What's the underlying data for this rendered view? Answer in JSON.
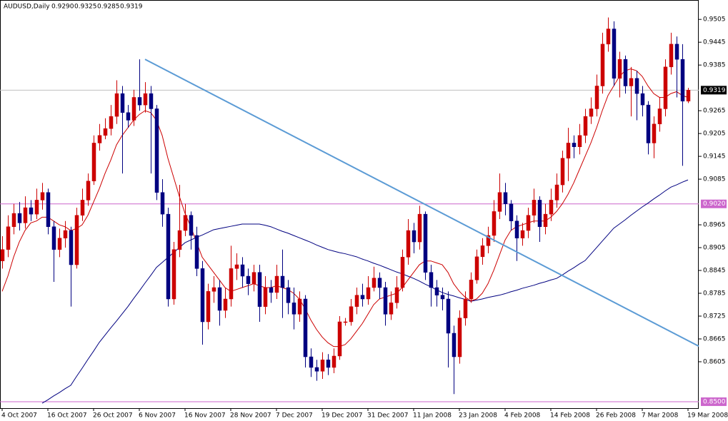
{
  "chart_data": {
    "type": "candlestick",
    "title": "AUDUSD,Daily",
    "ohlc_labels": [
      "0.9290",
      "0.9325",
      "0.9285",
      "0.9319"
    ],
    "categories": [
      "4 Oct 2007",
      null,
      null,
      null,
      null,
      null,
      null,
      null,
      "16 Oct 2007",
      null,
      null,
      null,
      null,
      null,
      null,
      null,
      "26 Oct 2007",
      null,
      null,
      null,
      null,
      null,
      null,
      null,
      "6 Nov 2007",
      null,
      null,
      null,
      null,
      null,
      null,
      null,
      "16 Nov 2007",
      null,
      null,
      null,
      null,
      null,
      null,
      null,
      "28 Nov 2007",
      null,
      null,
      null,
      null,
      null,
      null,
      null,
      "7 Dec 2007",
      null,
      null,
      null,
      null,
      null,
      null,
      null,
      "19 Dec 2007",
      null,
      null,
      null,
      null,
      null,
      null,
      null,
      "31 Dec 2007",
      null,
      null,
      null,
      null,
      null,
      null,
      null,
      "11 Jan 2008",
      null,
      null,
      null,
      null,
      null,
      null,
      null,
      "23 Jan 2008",
      null,
      null,
      null,
      null,
      null,
      null,
      null,
      "4 Feb 2008",
      null,
      null,
      null,
      null,
      null,
      null,
      null,
      "14 Feb 2008",
      null,
      null,
      null,
      null,
      null,
      null,
      null,
      "26 Feb 2008",
      null,
      null,
      null,
      null,
      null,
      null,
      null,
      "7 Mar 2008",
      null,
      null,
      null,
      null,
      null,
      null,
      null,
      "19 Mar 2008"
    ],
    "open": [
      0.887,
      0.89,
      0.896,
      0.8995,
      0.897,
      0.901,
      0.8993,
      0.903,
      0.905,
      0.896,
      0.89,
      0.893,
      0.895,
      0.886,
      0.899,
      0.903,
      0.908,
      0.918,
      0.92,
      0.9218,
      0.925,
      0.931,
      0.926,
      0.924,
      0.93,
      0.928,
      0.931,
      0.927,
      0.905,
      0.8993,
      0.877,
      0.89,
      0.895,
      0.899,
      0.8937,
      0.885,
      0.871,
      0.879,
      0.88,
      0.874,
      0.877,
      0.885,
      0.886,
      0.883,
      0.881,
      0.884,
      0.875,
      0.88,
      0.8787,
      0.883,
      0.88,
      0.876,
      0.873,
      0.877,
      0.8618,
      0.859,
      0.858,
      0.861,
      0.859,
      0.862,
      0.871,
      0.871,
      0.875,
      0.878,
      0.877,
      0.88,
      0.8825,
      0.88,
      0.873,
      0.876,
      0.88,
      0.888,
      0.895,
      0.892,
      0.8993,
      0.884,
      0.88,
      0.878,
      0.877,
      0.868,
      0.8618,
      0.872,
      0.877,
      0.882,
      0.8881,
      0.891,
      0.8937,
      0.9,
      0.905,
      0.902,
      0.8975,
      0.893,
      0.895,
      0.899,
      0.903,
      0.896,
      0.8993,
      0.903,
      0.907,
      0.914,
      0.918,
      0.917,
      0.92,
      0.925,
      0.927,
      0.933,
      0.944,
      0.948,
      0.935,
      0.94,
      0.933,
      0.935,
      0.931,
      0.928,
      0.918,
      0.923,
      0.927,
      0.938,
      0.944,
      0.94,
      0.929
    ],
    "high": [
      0.8935,
      0.899,
      0.902,
      0.9025,
      0.904,
      0.903,
      0.906,
      0.9075,
      0.906,
      0.8975,
      0.8955,
      0.8975,
      0.896,
      0.901,
      0.906,
      0.91,
      0.92,
      0.923,
      0.9245,
      0.928,
      0.9345,
      0.933,
      0.928,
      0.932,
      0.94,
      0.934,
      0.933,
      0.928,
      0.9085,
      0.901,
      0.892,
      0.907,
      0.902,
      0.9,
      0.896,
      0.887,
      0.881,
      0.883,
      0.882,
      0.88,
      0.891,
      0.889,
      0.888,
      0.885,
      0.886,
      0.886,
      0.883,
      0.882,
      0.886,
      0.89,
      0.882,
      0.88,
      0.879,
      0.878,
      0.864,
      0.861,
      0.863,
      0.8625,
      0.864,
      0.8725,
      0.872,
      0.877,
      0.88,
      0.881,
      0.883,
      0.8855,
      0.884,
      0.8815,
      0.879,
      0.883,
      0.89,
      0.898,
      0.897,
      0.9015,
      0.9,
      0.886,
      0.882,
      0.88,
      0.879,
      0.87,
      0.874,
      0.879,
      0.884,
      0.89,
      0.893,
      0.896,
      0.903,
      0.91,
      0.9075,
      0.903,
      0.899,
      0.897,
      0.901,
      0.906,
      0.904,
      0.902,
      0.906,
      0.91,
      0.916,
      0.922,
      0.92,
      0.923,
      0.927,
      0.93,
      0.936,
      0.947,
      0.951,
      0.95,
      0.942,
      0.941,
      0.938,
      0.937,
      0.933,
      0.929,
      0.925,
      0.93,
      0.94,
      0.947,
      0.946,
      0.944,
      0.9325
    ],
    "low": [
      0.885,
      0.888,
      0.894,
      0.895,
      0.8955,
      0.8975,
      0.898,
      0.9005,
      0.894,
      0.8815,
      0.888,
      0.8905,
      0.875,
      0.885,
      0.8975,
      0.9015,
      0.907,
      0.916,
      0.919,
      0.92,
      0.923,
      0.91,
      0.922,
      0.9225,
      0.9265,
      0.926,
      0.91,
      0.903,
      0.896,
      0.875,
      0.8755,
      0.888,
      0.8935,
      0.89,
      0.883,
      0.865,
      0.869,
      0.876,
      0.87,
      0.872,
      0.875,
      0.882,
      0.88,
      0.878,
      0.879,
      0.871,
      0.873,
      0.876,
      0.877,
      0.872,
      0.873,
      0.869,
      0.871,
      0.859,
      0.8565,
      0.8555,
      0.856,
      0.857,
      0.8575,
      0.861,
      0.87,
      0.87,
      0.873,
      0.875,
      0.8755,
      0.879,
      0.877,
      0.87,
      0.8715,
      0.8745,
      0.879,
      0.886,
      0.889,
      0.89,
      0.882,
      0.875,
      0.875,
      0.874,
      0.859,
      0.852,
      0.86,
      0.87,
      0.876,
      0.881,
      0.886,
      0.889,
      0.892,
      0.898,
      0.899,
      0.895,
      0.887,
      0.891,
      0.893,
      0.897,
      0.892,
      0.894,
      0.8975,
      0.901,
      0.905,
      0.908,
      0.914,
      0.915,
      0.918,
      0.923,
      0.925,
      0.931,
      0.942,
      0.933,
      0.93,
      0.931,
      0.925,
      0.924,
      0.925,
      0.915,
      0.914,
      0.921,
      0.925,
      0.936,
      0.93,
      0.912,
      0.9285
    ],
    "close": [
      0.89,
      0.896,
      0.8995,
      0.897,
      0.901,
      0.8993,
      0.903,
      0.905,
      0.896,
      0.89,
      0.893,
      0.895,
      0.886,
      0.899,
      0.903,
      0.908,
      0.918,
      0.92,
      0.9218,
      0.925,
      0.931,
      0.926,
      0.924,
      0.93,
      0.928,
      0.931,
      0.927,
      0.905,
      0.8993,
      0.877,
      0.89,
      0.895,
      0.899,
      0.8937,
      0.885,
      0.871,
      0.879,
      0.88,
      0.874,
      0.877,
      0.885,
      0.886,
      0.883,
      0.881,
      0.884,
      0.875,
      0.88,
      0.8787,
      0.883,
      0.88,
      0.876,
      0.873,
      0.877,
      0.8618,
      0.859,
      0.858,
      0.861,
      0.859,
      0.862,
      0.871,
      0.871,
      0.875,
      0.878,
      0.877,
      0.88,
      0.8825,
      0.88,
      0.873,
      0.876,
      0.88,
      0.888,
      0.895,
      0.892,
      0.8993,
      0.884,
      0.88,
      0.878,
      0.877,
      0.868,
      0.8618,
      0.872,
      0.877,
      0.882,
      0.8881,
      0.891,
      0.8937,
      0.9,
      0.905,
      0.902,
      0.8975,
      0.893,
      0.895,
      0.899,
      0.903,
      0.896,
      0.8993,
      0.903,
      0.907,
      0.914,
      0.918,
      0.917,
      0.92,
      0.925,
      0.927,
      0.933,
      0.944,
      0.948,
      0.935,
      0.94,
      0.933,
      0.935,
      0.931,
      0.928,
      0.918,
      0.923,
      0.927,
      0.938,
      0.944,
      0.94,
      0.929,
      0.9319
    ],
    "up_color": "#cc0000",
    "down_color": "#000080",
    "ma_fast": {
      "color": "#cc0000",
      "values": [
        0.879,
        0.883,
        0.888,
        0.892,
        0.895,
        0.897,
        0.8975,
        0.8985,
        0.8985,
        0.8975,
        0.8965,
        0.896,
        0.895,
        0.8955,
        0.8965,
        0.899,
        0.9025,
        0.906,
        0.91,
        0.9135,
        0.9175,
        0.92,
        0.922,
        0.924,
        0.9255,
        0.9265,
        0.926,
        0.924,
        0.92,
        0.914,
        0.909,
        0.904,
        0.8995,
        0.896,
        0.892,
        0.888,
        0.886,
        0.884,
        0.882,
        0.88,
        0.879,
        0.8795,
        0.88,
        0.8805,
        0.881,
        0.8805,
        0.88,
        0.88,
        0.8805,
        0.88,
        0.8795,
        0.8785,
        0.877,
        0.8745,
        0.8715,
        0.869,
        0.867,
        0.8655,
        0.8645,
        0.8645,
        0.865,
        0.8665,
        0.8685,
        0.8705,
        0.873,
        0.8755,
        0.877,
        0.8775,
        0.878,
        0.8785,
        0.88,
        0.882,
        0.884,
        0.886,
        0.887,
        0.887,
        0.8865,
        0.886,
        0.884,
        0.881,
        0.879,
        0.8775,
        0.8765,
        0.877,
        0.8785,
        0.881,
        0.8845,
        0.8885,
        0.8925,
        0.895,
        0.896,
        0.8965,
        0.897,
        0.8975,
        0.8975,
        0.8975,
        0.8985,
        0.9,
        0.902,
        0.9045,
        0.9075,
        0.911,
        0.9145,
        0.918,
        0.922,
        0.9265,
        0.9305,
        0.933,
        0.9355,
        0.937,
        0.9375,
        0.937,
        0.9355,
        0.933,
        0.931,
        0.93,
        0.93,
        0.931,
        0.9315,
        0.9305,
        0.93
      ]
    },
    "ma_slow": {
      "color": "#000080",
      "values": [
        null,
        null,
        null,
        null,
        null,
        null,
        null,
        0.8496,
        0.8505,
        0.8515,
        0.8524,
        0.8534,
        0.8543,
        0.8566,
        0.8588,
        0.8611,
        0.8633,
        0.8656,
        0.8675,
        0.8694,
        0.8712,
        0.8731,
        0.875,
        0.8771,
        0.8791,
        0.8812,
        0.8832,
        0.8853,
        0.8866,
        0.8879,
        0.8892,
        0.8905,
        0.8918,
        0.8925,
        0.8932,
        0.8938,
        0.8945,
        0.8952,
        0.8955,
        0.8958,
        0.8961,
        0.8964,
        0.8967,
        0.8967,
        0.8967,
        0.8967,
        0.8964,
        0.896,
        0.8954,
        0.8948,
        0.8943,
        0.8937,
        0.8931,
        0.8925,
        0.8919,
        0.8912,
        0.8906,
        0.89,
        0.8896,
        0.8892,
        0.8889,
        0.8885,
        0.8881,
        0.8875,
        0.887,
        0.8864,
        0.8859,
        0.8853,
        0.8847,
        0.8841,
        0.8836,
        0.883,
        0.8824,
        0.8817,
        0.8809,
        0.8802,
        0.8794,
        0.8787,
        0.8782,
        0.8778,
        0.8773,
        0.8769,
        0.8764,
        0.8767,
        0.877,
        0.8774,
        0.8777,
        0.878,
        0.8784,
        0.8789,
        0.8793,
        0.8798,
        0.8802,
        0.8806,
        0.8811,
        0.8815,
        0.882,
        0.8824,
        0.8833,
        0.8843,
        0.8852,
        0.8862,
        0.8871,
        0.8888,
        0.8905,
        0.8922,
        0.8939,
        0.8956,
        0.8967,
        0.8978,
        0.899,
        0.9001,
        0.9012,
        0.9022,
        0.9033,
        0.9043,
        0.9054,
        0.9064,
        0.907,
        0.9077,
        0.9083
      ]
    },
    "trendline": {
      "color": "#5b9bd5",
      "values": [
        0.94,
        0.8646
      ]
    },
    "hlines": [
      {
        "value": 0.9319,
        "color": "#c0c0c0",
        "box": "#000000"
      },
      {
        "value": 0.902,
        "label": "0.9020",
        "color": "#cc66cc",
        "box": "#cc66cc"
      },
      {
        "value": 0.85,
        "label": "0.8500",
        "color": "#cc66cc",
        "box": "#cc66cc"
      }
    ],
    "ylim": [
      0.8483,
      0.9556
    ],
    "yticks": [
      0.9505,
      0.9445,
      0.9385,
      0.9265,
      0.9205,
      0.9145,
      0.9085,
      0.8965,
      0.8905,
      0.8845,
      0.8785,
      0.8725,
      0.8665,
      0.8605
    ],
    "grid": false
  }
}
